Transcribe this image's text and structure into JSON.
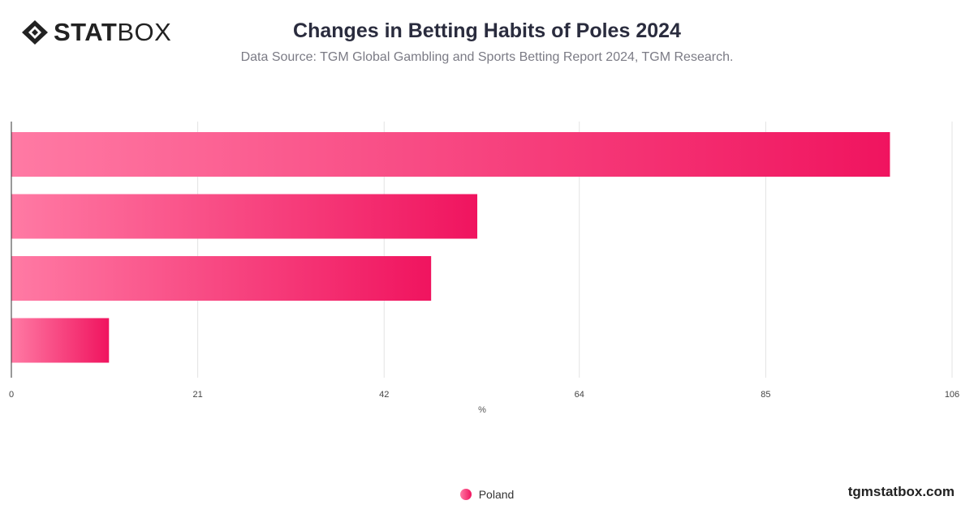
{
  "header": {
    "logo_bold": "STAT",
    "logo_light": "BOX",
    "title": "Changes in Betting Habits of Poles 2024",
    "subtitle": "Data Source: TGM Global Gambling and Sports Betting Report 2024, TGM Research."
  },
  "chart_data": {
    "type": "bar",
    "orientation": "horizontal",
    "categories": [
      "",
      "",
      "",
      ""
    ],
    "series": [
      {
        "name": "Poland",
        "values": [
          99,
          52.5,
          47.3,
          11
        ]
      }
    ],
    "xlabel": "%",
    "ylabel": "",
    "xlim": [
      0,
      106
    ],
    "ticks": [
      0,
      21,
      42,
      64,
      85,
      106
    ],
    "tick_labels": [
      "0",
      "21",
      "42",
      "64",
      "85",
      "106"
    ],
    "grid": true,
    "legend": "bottom-center",
    "colors": {
      "bar_start": "#ff7aa4",
      "bar_end": "#f0145f",
      "grid": "#e3e3e3",
      "axis": "#333333"
    }
  },
  "footer": {
    "watermark": "tgmstatbox.com"
  }
}
